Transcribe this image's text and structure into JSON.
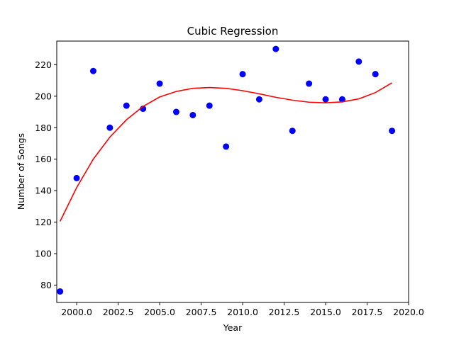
{
  "chart_data": {
    "type": "scatter",
    "title": "Cubic Regression",
    "xlabel": "Year",
    "ylabel": "Number of Songs",
    "xlim": [
      1998.8,
      2020.0
    ],
    "ylim": [
      69,
      235
    ],
    "grid": false,
    "x_ticks": [
      2000.0,
      2002.5,
      2005.0,
      2007.5,
      2010.0,
      2012.5,
      2015.0,
      2017.5,
      2020.0
    ],
    "x_tick_labels": [
      "2000.0",
      "2002.5",
      "2005.0",
      "2007.5",
      "2010.0",
      "2012.5",
      "2015.0",
      "2017.5",
      "2020.0"
    ],
    "y_ticks": [
      80,
      100,
      120,
      140,
      160,
      180,
      200,
      220
    ],
    "y_tick_labels": [
      "80",
      "100",
      "120",
      "140",
      "160",
      "180",
      "200",
      "220"
    ],
    "series": [
      {
        "kind": "scatter",
        "color": "#0000ff",
        "points": [
          [
            1999,
            76
          ],
          [
            2000,
            148
          ],
          [
            2001,
            216
          ],
          [
            2002,
            180
          ],
          [
            2003,
            194
          ],
          [
            2004,
            192
          ],
          [
            2005,
            208
          ],
          [
            2006,
            190
          ],
          [
            2007,
            188
          ],
          [
            2008,
            194
          ],
          [
            2009,
            168
          ],
          [
            2010,
            214
          ],
          [
            2011,
            198
          ],
          [
            2012,
            230
          ],
          [
            2013,
            178
          ],
          [
            2014,
            208
          ],
          [
            2015,
            198
          ],
          [
            2016,
            198
          ],
          [
            2017,
            222
          ],
          [
            2018,
            214
          ],
          [
            2019,
            178
          ]
        ]
      },
      {
        "kind": "line",
        "color": "#ff0000",
        "points": [
          [
            1999,
            120.5
          ],
          [
            2000,
            142
          ],
          [
            2001,
            160
          ],
          [
            2002,
            174
          ],
          [
            2003,
            185
          ],
          [
            2004,
            193.5
          ],
          [
            2005,
            199.5
          ],
          [
            2006,
            203
          ],
          [
            2007,
            205
          ],
          [
            2008,
            205.5
          ],
          [
            2009,
            205
          ],
          [
            2010,
            203.5
          ],
          [
            2011,
            201.5
          ],
          [
            2012,
            199.3
          ],
          [
            2013,
            197.5
          ],
          [
            2014,
            196.2
          ],
          [
            2015,
            195.8
          ],
          [
            2016,
            196.4
          ],
          [
            2017,
            198.3
          ],
          [
            2018,
            202.3
          ],
          [
            2019,
            208.5
          ]
        ]
      }
    ]
  }
}
